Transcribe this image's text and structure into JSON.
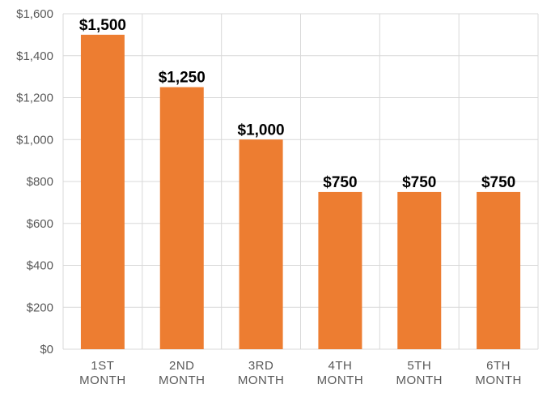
{
  "chart_data": {
    "type": "bar",
    "categories": [
      [
        "1ST",
        "MONTH"
      ],
      [
        "2ND",
        "MONTH"
      ],
      [
        "3RD",
        "MONTH"
      ],
      [
        "4TH",
        "MONTH"
      ],
      [
        "5TH",
        "MONTH"
      ],
      [
        "6TH",
        "MONTH"
      ]
    ],
    "values": [
      1500,
      1250,
      1000,
      750,
      750,
      750
    ],
    "data_labels": [
      "$1,500",
      "$1,250",
      "$1,000",
      "$750",
      "$750",
      "$750"
    ],
    "y_tick_labels": [
      "$0",
      "$200",
      "$400",
      "$600",
      "$800",
      "$1,000",
      "$1,200",
      "$1,400",
      "$1,600"
    ],
    "ylim": [
      0,
      1600
    ],
    "y_step": 200,
    "title": "",
    "xlabel": "",
    "ylabel": "",
    "grid": true,
    "colors": {
      "bar": "#ED7D31",
      "grid": "#D9D9D9",
      "tick_text": "#595959",
      "label_text": "#000000"
    }
  }
}
